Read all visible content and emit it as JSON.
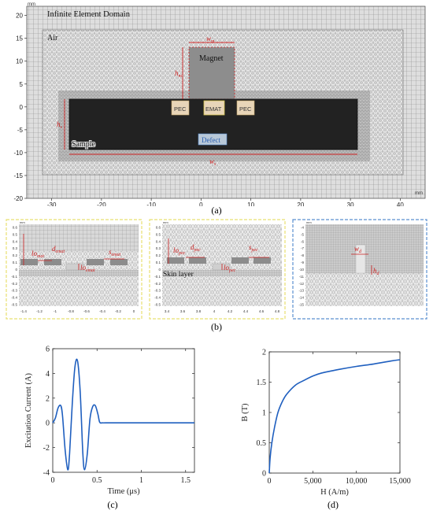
{
  "fig_a": {
    "panel_label": "(a)",
    "unit_top": "mm",
    "unit_right": "mm",
    "x_ticks": [
      "-30",
      "-20",
      "-10",
      "0",
      "10",
      "20",
      "30",
      "40"
    ],
    "y_ticks": [
      "20",
      "15",
      "10",
      "5",
      "0",
      "-5",
      "-10",
      "-15",
      "-20"
    ],
    "region_labels": {
      "infinite": "Infinite Element Domain",
      "air": "Air",
      "magnet": "Magnet",
      "sample": "Sample",
      "defect": "Defect",
      "pec_left": "PEC",
      "emat": "EMAT",
      "pec_right": "PEC"
    },
    "dimension_labels": {
      "wm": "w",
      "wm_sub": "m",
      "hm": "h",
      "hm_sub": "m",
      "hs": "h",
      "hs_sub": "s",
      "ws": "w",
      "ws_sub": "s"
    },
    "colors": {
      "mesh": "#7f7f7f",
      "sample": "#222222",
      "dim": "#cc2020"
    }
  },
  "fig_b": {
    "panel_label": "(b)",
    "left": {
      "border_color": "#e8e070",
      "unit": "mm",
      "y_ticks": [
        "0.6",
        "0.5",
        "0.4",
        "0.3",
        "0.2",
        "0.1",
        "0",
        "-0.1",
        "-0.2",
        "-0.3",
        "-0.4",
        "-0.5"
      ],
      "x_ticks": [
        "-1.4",
        "-1.2",
        "-1",
        "-0.8",
        "-0.6",
        "-0.4",
        "-0.2",
        "0"
      ],
      "labels": {
        "lo": "lo",
        "lo_sub": "mat",
        "d": "d",
        "d_sub": "emat",
        "s": "s",
        "s_sub": "emat",
        "lo2": "lo",
        "lo2_sub": "emat"
      }
    },
    "middle": {
      "border_color": "#e8e070",
      "unit": "mm",
      "y_ticks": [
        "0.6",
        "0.5",
        "0.4",
        "0.3",
        "0.2",
        "0.1",
        "0",
        "-0.1",
        "-0.2",
        "-0.3",
        "-0.4",
        "-0.5"
      ],
      "x_ticks": [
        "3.4",
        "3.6",
        "3.8",
        "4",
        "4.2",
        "4.4",
        "4.6",
        "4.8"
      ],
      "labels": {
        "lo": "lo",
        "lo_sub": "pec",
        "d": "d",
        "d_sub": "pec",
        "s": "s",
        "s_sub": "pec",
        "lo2": "lo",
        "lo2_sub": "pec",
        "skin": "Skin layer"
      }
    },
    "right": {
      "border_color": "#5a8fd0",
      "unit": "mm",
      "y_ticks": [
        "-4",
        "-5",
        "-6",
        "-7",
        "-8",
        "-9",
        "-10",
        "-11",
        "-12",
        "-13",
        "-14",
        "-15"
      ],
      "labels": {
        "w": "w",
        "w_sub": "d",
        "h": "h",
        "h_sub": "d"
      }
    }
  },
  "fig_c": {
    "panel_label": "(c)",
    "chart_data": {
      "type": "line",
      "title": "",
      "xlabel": "Time (μs)",
      "ylabel": "Excitation Current (A)",
      "xlim": [
        0,
        1.6
      ],
      "ylim": [
        -4,
        6
      ],
      "x_ticks": [
        "0",
        "0.5",
        "1",
        "1.5"
      ],
      "y_ticks": [
        "6",
        "4",
        "2",
        "0",
        "-2",
        "-4"
      ],
      "series": [
        {
          "x": [
            0,
            0.03,
            0.06,
            0.09,
            0.11,
            0.14,
            0.17,
            0.19,
            0.22,
            0.25,
            0.28,
            0.31,
            0.34,
            0.36,
            0.39,
            0.42,
            0.45,
            0.48,
            0.51,
            0.53,
            0.56,
            0.6,
            0.8,
            1.0,
            1.2,
            1.4,
            1.6
          ],
          "y": [
            0,
            0.4,
            1.2,
            1.4,
            0.6,
            -2.2,
            -3.8,
            -2.5,
            1.5,
            4.5,
            5.0,
            2.5,
            -2.5,
            -3.8,
            -2.5,
            0.3,
            1.3,
            1.4,
            0.7,
            0.05,
            0,
            0,
            0,
            0,
            0,
            0,
            0
          ]
        }
      ],
      "color": "#1f5fbf"
    }
  },
  "fig_d": {
    "panel_label": "(d)",
    "chart_data": {
      "type": "line",
      "title": "",
      "xlabel": "H (A/m)",
      "ylabel": "B (T)",
      "xlim": [
        0,
        15000
      ],
      "ylim": [
        0,
        2
      ],
      "x_ticks": [
        "0",
        "5,000",
        "10,000",
        "15,000"
      ],
      "y_ticks": [
        "2",
        "1.5",
        "1",
        "0.5",
        "0"
      ],
      "series": [
        {
          "x": [
            0,
            100,
            300,
            600,
            1000,
            1500,
            2000,
            3000,
            4000,
            5000,
            6000,
            8000,
            10000,
            12000,
            14000,
            15000
          ],
          "y": [
            0,
            0.25,
            0.5,
            0.75,
            1.0,
            1.18,
            1.3,
            1.45,
            1.53,
            1.6,
            1.65,
            1.71,
            1.76,
            1.8,
            1.85,
            1.87
          ]
        }
      ],
      "color": "#1f5fbf"
    }
  }
}
